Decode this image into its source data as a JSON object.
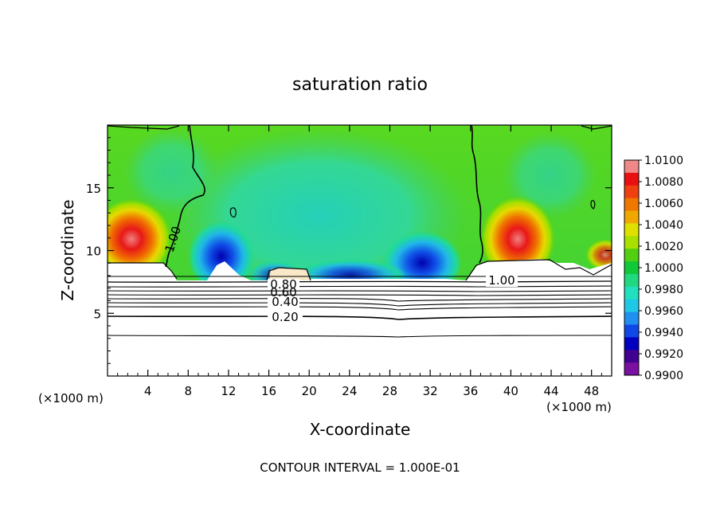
{
  "chart_data": {
    "type": "heatmap",
    "title": "saturation ratio",
    "xlabel": "X-coordinate",
    "ylabel": "Z-coordinate",
    "x_unit": "(×1000 m)",
    "z_unit": "(×1000 m)",
    "footer": "CONTOUR INTERVAL = 1.000E-01",
    "xlim": [
      0,
      50
    ],
    "ylim": [
      0,
      20
    ],
    "xticks": [
      4,
      8,
      12,
      16,
      20,
      24,
      28,
      32,
      36,
      40,
      44,
      48
    ],
    "yticks": [
      5,
      10,
      15
    ],
    "colorbar": {
      "range": [
        0.99,
        1.01
      ],
      "ticks": [
        "1.0100",
        "1.0080",
        "1.0060",
        "1.0040",
        "1.0020",
        "1.0000",
        "0.9980",
        "0.9960",
        "0.9940",
        "0.9920",
        "0.9900"
      ],
      "colors": [
        "#f08888",
        "#e81010",
        "#f04010",
        "#f07800",
        "#f0a800",
        "#e0e000",
        "#a8e000",
        "#50d010",
        "#10c838",
        "#20d880",
        "#20e0c0",
        "#20c8e8",
        "#2090f0",
        "#1048e8",
        "#0000c0",
        "#400090",
        "#7a10a0"
      ]
    },
    "contour_labels": [
      "1.00",
      "1.00",
      "0.80",
      "0.60",
      "0.40",
      "0.20"
    ],
    "contour_levels": [
      0.2,
      0.4,
      0.6,
      0.8,
      1.0
    ]
  }
}
